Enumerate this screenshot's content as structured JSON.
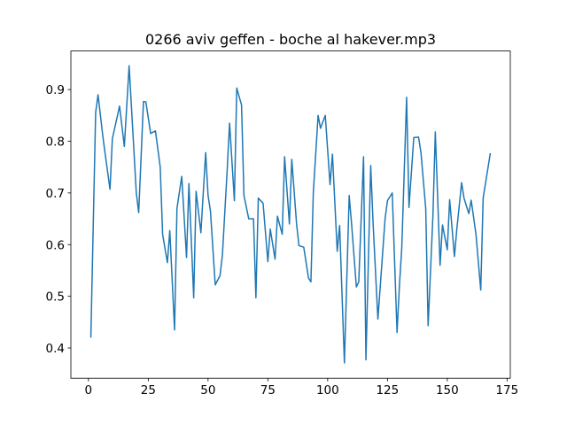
{
  "chart_data": {
    "type": "line",
    "title": "0266 aviv geffen - boche al hakever.mp3",
    "x": [
      1,
      3,
      4,
      6,
      7,
      9,
      10,
      13,
      15,
      17,
      20,
      21,
      23,
      24,
      26,
      28,
      30,
      31,
      33,
      34,
      36,
      37,
      39,
      41,
      42,
      44,
      45,
      47,
      49,
      50,
      51,
      53,
      55,
      56,
      58,
      59,
      61,
      62,
      64,
      65,
      67,
      69,
      70,
      71,
      73,
      75,
      76,
      78,
      79,
      81,
      82,
      84,
      85,
      87,
      88,
      90,
      92,
      93,
      94,
      96,
      97,
      99,
      101,
      102,
      104,
      105,
      107,
      109,
      110,
      112,
      113,
      115,
      116,
      118,
      119,
      121,
      122,
      124,
      125,
      127,
      129,
      130,
      131,
      133,
      134,
      136,
      138,
      139,
      141,
      142,
      144,
      145,
      147,
      148,
      150,
      151,
      153,
      154,
      156,
      157,
      159,
      160,
      162,
      164,
      165,
      168
    ],
    "series": [
      {
        "color": "#1f77b4",
        "values": [
          0.42,
          0.855,
          0.89,
          0.81,
          0.775,
          0.707,
          0.805,
          0.868,
          0.79,
          0.946,
          0.7,
          0.662,
          0.877,
          0.876,
          0.815,
          0.82,
          0.75,
          0.62,
          0.565,
          0.627,
          0.435,
          0.67,
          0.732,
          0.575,
          0.718,
          0.497,
          0.703,
          0.623,
          0.778,
          0.695,
          0.665,
          0.522,
          0.54,
          0.58,
          0.745,
          0.835,
          0.685,
          0.903,
          0.87,
          0.695,
          0.65,
          0.65,
          0.497,
          0.69,
          0.68,
          0.567,
          0.63,
          0.572,
          0.655,
          0.62,
          0.77,
          0.64,
          0.765,
          0.64,
          0.598,
          0.595,
          0.535,
          0.528,
          0.7,
          0.85,
          0.825,
          0.85,
          0.716,
          0.775,
          0.587,
          0.637,
          0.371,
          0.695,
          0.64,
          0.518,
          0.528,
          0.77,
          0.377,
          0.753,
          0.64,
          0.456,
          0.52,
          0.65,
          0.685,
          0.7,
          0.43,
          0.52,
          0.595,
          0.885,
          0.672,
          0.807,
          0.808,
          0.778,
          0.67,
          0.443,
          0.655,
          0.818,
          0.56,
          0.638,
          0.59,
          0.687,
          0.577,
          0.63,
          0.72,
          0.69,
          0.66,
          0.686,
          0.62,
          0.512,
          0.69,
          0.777
        ]
      }
    ],
    "xlim": [
      -7.35,
      176.35
    ],
    "xticks": [
      0,
      25,
      50,
      75,
      100,
      125,
      150,
      175
    ],
    "ylim": [
      0.3414,
      0.9746
    ],
    "yticks": [
      0.4,
      0.5,
      0.6,
      0.7,
      0.8,
      0.9
    ]
  }
}
